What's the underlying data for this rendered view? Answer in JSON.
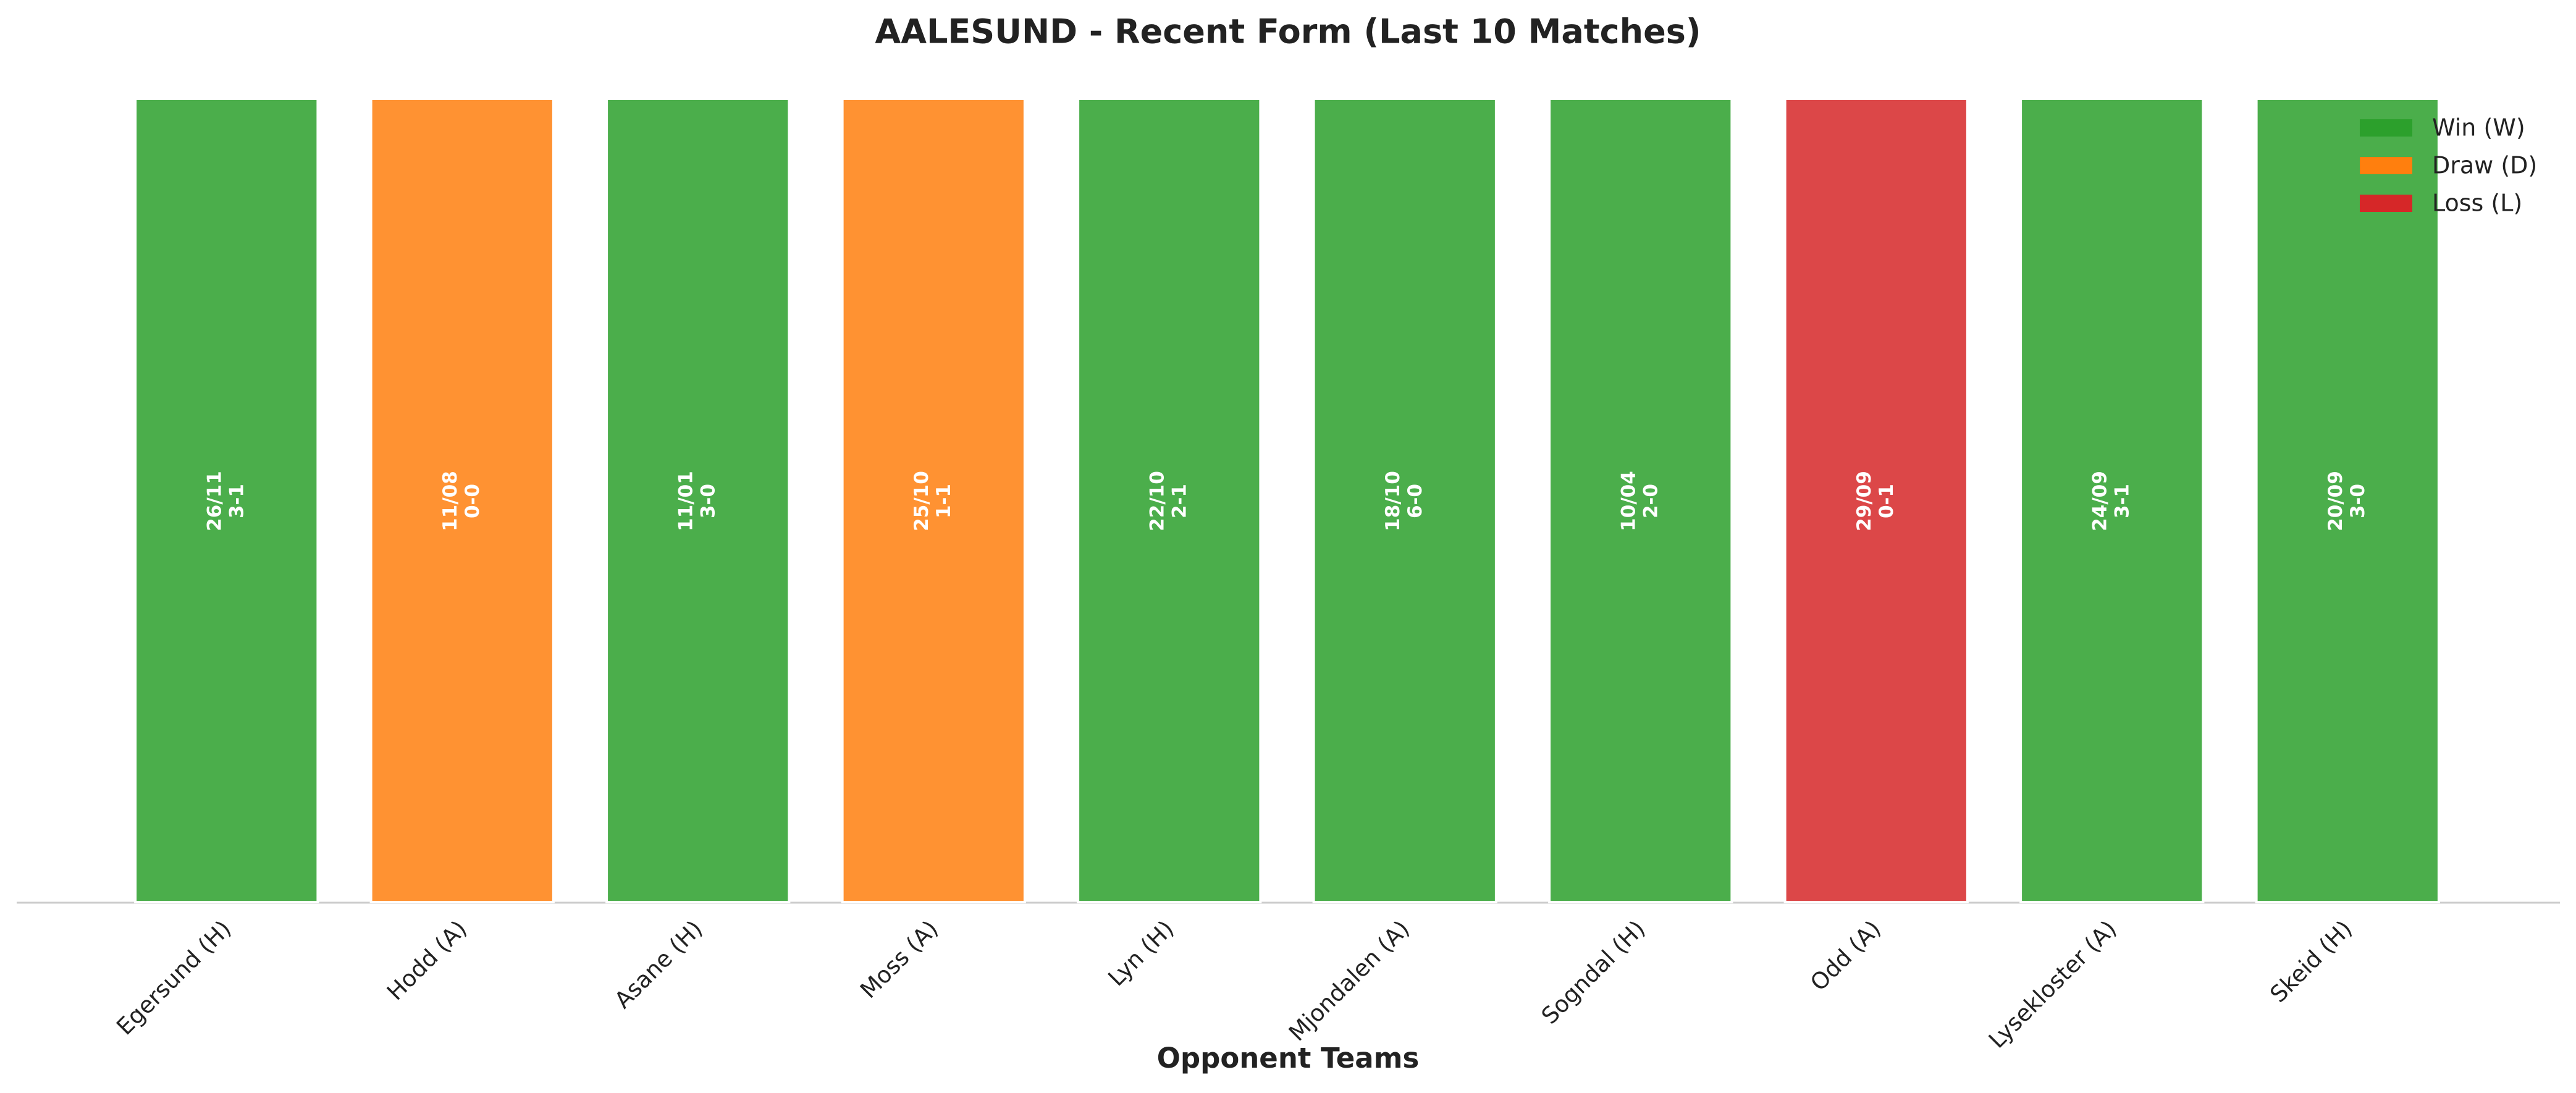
{
  "chart_data": {
    "type": "bar",
    "title": "AALESUND - Recent Form (Last 10 Matches)",
    "xlabel": "Opponent Teams",
    "categories": [
      "Egersund (H)",
      "Hodd (A)",
      "Asane (H)",
      "Moss (A)",
      "Lyn (H)",
      "Mjondalen (A)",
      "Sogndal (H)",
      "Odd (A)",
      "Lysekloster (A)",
      "Skeid (H)"
    ],
    "values": [
      1,
      1,
      1,
      1,
      1,
      1,
      1,
      1,
      1,
      1
    ],
    "dates": [
      "26/11",
      "11/08",
      "11/01",
      "25/10",
      "22/10",
      "18/10",
      "10/04",
      "29/09",
      "24/09",
      "20/09"
    ],
    "scores": [
      "3-1",
      "0-0",
      "3-0",
      "1-1",
      "2-1",
      "6-0",
      "2-0",
      "0-1",
      "3-1",
      "3-0"
    ],
    "colors": [
      "#2ca02c",
      "#ff7f0e",
      "#2ca02c",
      "#ff7f0e",
      "#2ca02c",
      "#2ca02c",
      "#2ca02c",
      "#d62728",
      "#2ca02c",
      "#2ca02c"
    ],
    "ylim": [
      0,
      1
    ],
    "legend_position": "upper right",
    "legend": [
      {
        "name": "Win (W)",
        "color": "#2ca02c"
      },
      {
        "name": "Draw (D)",
        "color": "#ff7f0e"
      },
      {
        "name": "Loss (L)",
        "color": "#d62728"
      }
    ]
  }
}
